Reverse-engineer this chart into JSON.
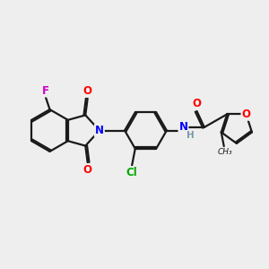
{
  "bg_color": "#eeeeee",
  "bond_color": "#1a1a1a",
  "bond_width": 1.6,
  "atom_colors": {
    "O": "#ff0000",
    "N": "#0000ff",
    "F": "#cc00cc",
    "Cl": "#00aa00",
    "C": "#1a1a1a",
    "H": "#7a9aaa"
  },
  "font_size": 8.5
}
